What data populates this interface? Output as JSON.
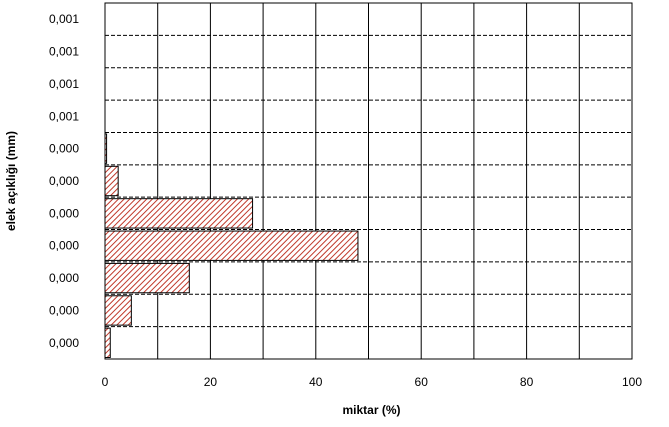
{
  "chart_data": {
    "type": "bar",
    "orientation": "horizontal",
    "title": "",
    "xlabel": "miktar (%)",
    "ylabel": "elek açıklığı (mm)",
    "xlim": [
      0,
      100
    ],
    "x_ticks": [
      "0",
      "20",
      "40",
      "60",
      "80",
      "100"
    ],
    "categories": [
      "0,001",
      "0,001",
      "0,001",
      "0,001",
      "0,000",
      "0,000",
      "0,000",
      "0,000",
      "0,000",
      "0,000",
      "0,000"
    ],
    "values": [
      0,
      0,
      0,
      0,
      0.3,
      2.5,
      28,
      48,
      16,
      5,
      1
    ],
    "grid": {
      "vertical": "solid",
      "horizontal": "dashed"
    },
    "bar_pattern": "red diagonal hatch",
    "colors": {
      "bar_stroke": "#000000",
      "hatch": "#c0392b",
      "grid": "#000000"
    }
  }
}
